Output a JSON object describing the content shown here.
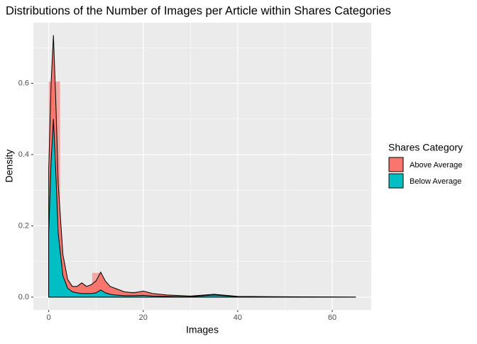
{
  "chart_data": {
    "type": "stacked-density",
    "title": "Distributions of the Number of Images per Article within Shares Categories",
    "x_label": "Images",
    "y_label": "Density",
    "legend_title": "Shares Category",
    "x": [
      0,
      0.5,
      1,
      1.5,
      2,
      3,
      4,
      5,
      6,
      7,
      8,
      9,
      10,
      11,
      12,
      13,
      14,
      15,
      16,
      18,
      20,
      22,
      25,
      30,
      35,
      40,
      50,
      65
    ],
    "series": [
      {
        "name": "Above Average",
        "color": "#f8766d",
        "values": [
          0.18,
          0.22,
          0.235,
          0.2,
          0.14,
          0.06,
          0.025,
          0.015,
          0.018,
          0.03,
          0.02,
          0.025,
          0.033,
          0.05,
          0.033,
          0.022,
          0.019,
          0.015,
          0.011,
          0.008,
          0.012,
          0.007,
          0.004,
          0.002,
          0.002,
          0.001,
          0.0005,
          0
        ]
      },
      {
        "name": "Below Average",
        "color": "#00bfc4",
        "values": [
          0.18,
          0.38,
          0.5,
          0.35,
          0.18,
          0.06,
          0.025,
          0.015,
          0.012,
          0.01,
          0.01,
          0.01,
          0.012,
          0.02,
          0.012,
          0.008,
          0.006,
          0.005,
          0.004,
          0.004,
          0.005,
          0.003,
          0.002,
          0.001,
          0.006,
          0.001,
          0.0005,
          0
        ]
      }
    ],
    "bars": {
      "color": "#f8766d",
      "x_start": [
        0,
        9.2,
        17.5
      ],
      "x_end": [
        2.4,
        11,
        20
      ],
      "values": [
        0.605,
        0.068,
        0.015
      ]
    },
    "xlim": [
      -3.25,
      68.25
    ],
    "xticks": [
      0,
      20,
      40,
      60
    ],
    "ylim": [
      -0.036,
      0.77
    ],
    "yticks": [
      {
        "value": 0,
        "label": "0.0"
      },
      0.2,
      0.4,
      0.6
    ],
    "grid": true
  }
}
